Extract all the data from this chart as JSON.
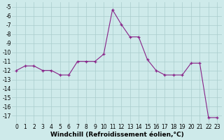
{
  "x": [
    0,
    1,
    2,
    3,
    4,
    5,
    6,
    7,
    8,
    9,
    10,
    11,
    12,
    13,
    14,
    15,
    16,
    17,
    18,
    19,
    20,
    21,
    22,
    23
  ],
  "y": [
    -12,
    -11.5,
    -11.5,
    -12,
    -12,
    -12.5,
    -12.5,
    -11,
    -11,
    -11,
    -10.2,
    -5.3,
    -6.9,
    -8.3,
    -8.3,
    -10.8,
    -12,
    -12.5,
    -12.5,
    -12.5,
    -11.2,
    -11.2,
    -17.2,
    -17.2
  ],
  "line_color": "#882288",
  "marker": "+",
  "marker_color": "#882288",
  "bg_color": "#ceeaea",
  "grid_color": "#aacccc",
  "ylabel_values": [
    -5,
    -6,
    -7,
    -8,
    -9,
    -10,
    -11,
    -12,
    -13,
    -14,
    -15,
    -16,
    -17
  ],
  "ylim": [
    -17.8,
    -4.5
  ],
  "xlim": [
    -0.5,
    23.5
  ],
  "xlabel": "Windchill (Refroidissement éolien,°C)",
  "tick_fontsize": 5.5,
  "label_fontsize": 6.5,
  "label_fontweight": "bold"
}
